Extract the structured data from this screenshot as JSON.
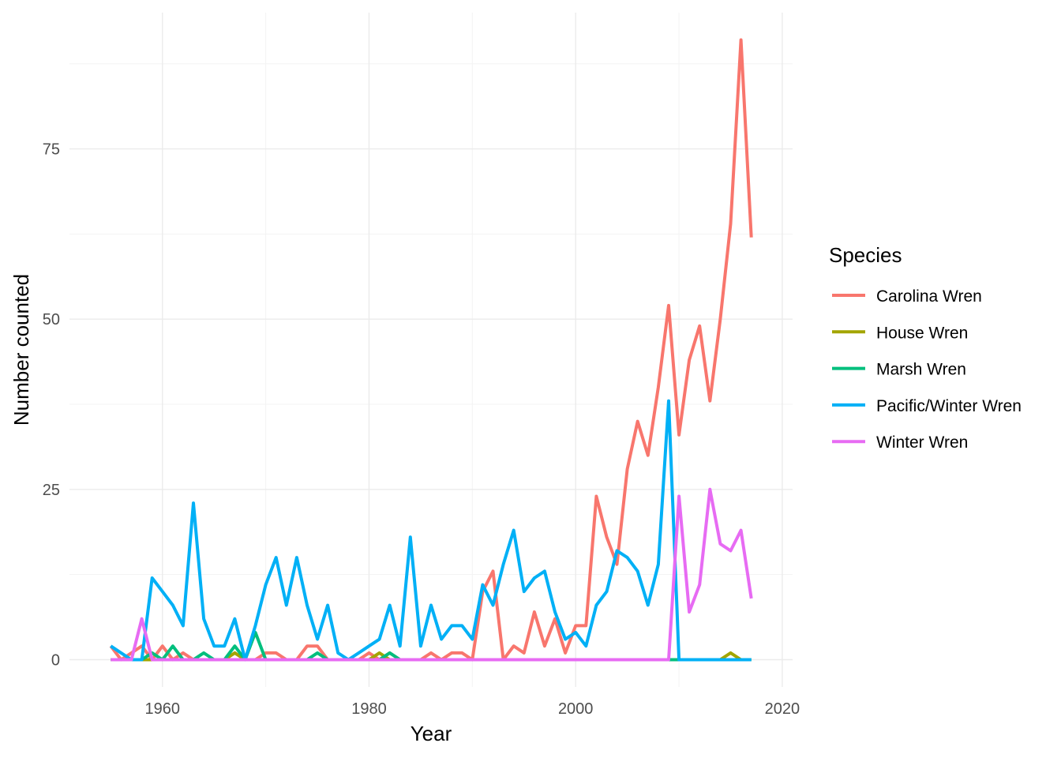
{
  "chart_data": {
    "type": "line",
    "xlabel": "Year",
    "ylabel": "Number counted",
    "xlim": [
      1951,
      2021
    ],
    "ylim": [
      -4,
      95
    ],
    "x_ticks": [
      1960,
      1980,
      2000,
      2020
    ],
    "y_ticks": [
      0,
      25,
      50,
      75
    ],
    "grid": true,
    "legend": {
      "title": "Species",
      "placement": "right"
    },
    "x": [
      1955,
      1956,
      1957,
      1958,
      1959,
      1960,
      1961,
      1962,
      1963,
      1964,
      1965,
      1966,
      1967,
      1968,
      1969,
      1970,
      1971,
      1972,
      1973,
      1974,
      1975,
      1976,
      1977,
      1978,
      1979,
      1980,
      1981,
      1982,
      1983,
      1984,
      1985,
      1986,
      1987,
      1988,
      1989,
      1990,
      1991,
      1992,
      1993,
      1994,
      1995,
      1996,
      1997,
      1998,
      1999,
      2000,
      2001,
      2002,
      2003,
      2004,
      2005,
      2006,
      2007,
      2008,
      2009,
      2010,
      2011,
      2012,
      2013,
      2014,
      2015,
      2016,
      2017
    ],
    "series": [
      {
        "name": "Carolina Wren",
        "color": "#F8766D",
        "values": [
          2,
          0,
          1,
          2,
          0,
          2,
          0,
          1,
          0,
          0,
          0,
          0,
          1,
          0,
          0,
          1,
          1,
          0,
          0,
          2,
          2,
          0,
          0,
          0,
          0,
          1,
          0,
          1,
          0,
          0,
          0,
          1,
          0,
          1,
          1,
          0,
          10,
          13,
          0,
          2,
          1,
          7,
          2,
          6,
          1,
          5,
          5,
          24,
          18,
          14,
          28,
          35,
          30,
          40,
          52,
          33,
          44,
          49,
          38,
          50,
          64,
          91,
          62
        ]
      },
      {
        "name": "House Wren",
        "color": "#A3A500",
        "values": [
          0,
          0,
          0,
          0,
          0,
          0,
          0,
          0,
          0,
          0,
          0,
          0,
          1,
          0,
          0,
          0,
          0,
          0,
          0,
          0,
          0,
          0,
          0,
          0,
          0,
          0,
          1,
          0,
          0,
          0,
          0,
          0,
          0,
          0,
          0,
          0,
          0,
          0,
          0,
          0,
          0,
          0,
          0,
          0,
          0,
          0,
          0,
          0,
          0,
          0,
          0,
          0,
          0,
          0,
          0,
          0,
          0,
          0,
          0,
          0,
          1,
          0,
          0
        ]
      },
      {
        "name": "Marsh Wren",
        "color": "#00BF7D",
        "values": [
          0,
          0,
          0,
          0,
          1,
          0,
          2,
          0,
          0,
          1,
          0,
          0,
          2,
          0,
          4,
          0,
          0,
          0,
          0,
          0,
          1,
          0,
          0,
          0,
          0,
          0,
          0,
          1,
          0,
          0,
          0,
          0,
          0,
          0,
          0,
          0,
          0,
          0,
          0,
          0,
          0,
          0,
          0,
          0,
          0,
          0,
          0,
          0,
          0,
          0,
          0,
          0,
          0,
          0,
          0,
          0,
          0,
          0,
          0,
          0,
          0,
          0,
          0
        ]
      },
      {
        "name": "Pacific/Winter Wren",
        "color": "#00B0F6",
        "values": [
          2,
          1,
          0,
          0,
          12,
          10,
          8,
          5,
          23,
          6,
          2,
          2,
          6,
          0,
          5,
          11,
          15,
          8,
          15,
          8,
          3,
          8,
          1,
          0,
          1,
          2,
          3,
          8,
          2,
          18,
          2,
          8,
          3,
          5,
          5,
          3,
          11,
          8,
          14,
          19,
          10,
          12,
          13,
          7,
          3,
          4,
          2,
          8,
          10,
          16,
          15,
          13,
          8,
          14,
          38,
          0,
          0,
          0,
          0,
          0,
          0,
          0,
          0
        ]
      },
      {
        "name": "Winter Wren",
        "color": "#E76BF3",
        "values": [
          0,
          0,
          0,
          6,
          0,
          0,
          0,
          0,
          0,
          0,
          0,
          0,
          0,
          0,
          0,
          0,
          0,
          0,
          0,
          0,
          0,
          0,
          0,
          0,
          0,
          0,
          0,
          0,
          0,
          0,
          0,
          0,
          0,
          0,
          0,
          0,
          0,
          0,
          0,
          0,
          0,
          0,
          0,
          0,
          0,
          0,
          0,
          0,
          0,
          0,
          0,
          0,
          0,
          0,
          0,
          24,
          7,
          11,
          25,
          17,
          16,
          19,
          9
        ]
      }
    ]
  }
}
